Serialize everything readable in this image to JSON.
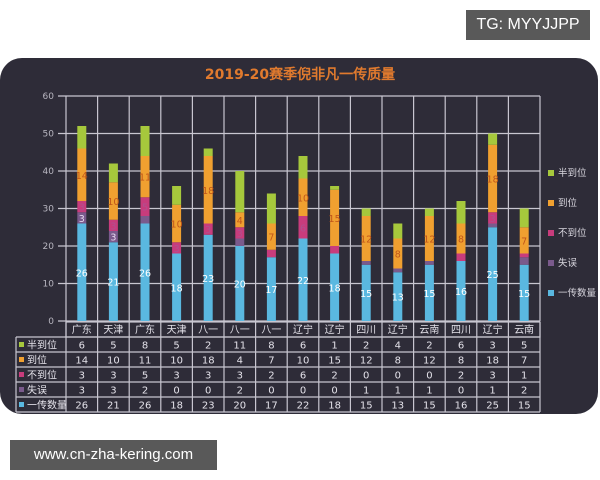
{
  "watermarks": {
    "top": "TG: MYYJJPP",
    "bottom": "www.cn-zha-kering.com"
  },
  "colors": {
    "panel_bg": "#2e2c38",
    "grid": "#c8c6d0",
    "title": "#e07a2e",
    "series": {
      "半到位": "#a6c83c",
      "到位": "#f0a030",
      "不到位": "#c83c7c",
      "失误": "#7a5a8c",
      "一传数量": "#5ab8e0"
    }
  },
  "chart_data": {
    "type": "bar",
    "stacked": true,
    "title": "2019-20赛季倪非凡一传质量",
    "xlabel": "",
    "ylabel": "",
    "ylim": [
      0,
      60
    ],
    "yticks": [
      0,
      10,
      20,
      30,
      40,
      50,
      60
    ],
    "grid": true,
    "legend_position": "right",
    "categories": [
      "广东",
      "天津",
      "广东",
      "天津",
      "八一",
      "八一",
      "八一",
      "辽宁",
      "辽宁",
      "四川",
      "辽宁",
      "云南",
      "四川",
      "辽宁",
      "云南"
    ],
    "series": [
      {
        "name": "一传数量",
        "color": "#5ab8e0",
        "values": [
          26,
          21,
          26,
          18,
          23,
          20,
          17,
          22,
          18,
          15,
          13,
          15,
          16,
          25,
          15
        ]
      },
      {
        "name": "失误",
        "color": "#7a5a8c",
        "values": [
          3,
          3,
          2,
          0,
          0,
          2,
          0,
          0,
          0,
          1,
          1,
          1,
          0,
          1,
          2
        ]
      },
      {
        "name": "不到位",
        "color": "#c83c7c",
        "values": [
          3,
          3,
          5,
          3,
          3,
          3,
          2,
          6,
          2,
          0,
          0,
          0,
          2,
          3,
          1
        ]
      },
      {
        "name": "到位",
        "color": "#f0a030",
        "values": [
          14,
          10,
          11,
          10,
          18,
          4,
          7,
          10,
          15,
          12,
          8,
          12,
          8,
          18,
          7
        ]
      },
      {
        "name": "半到位",
        "color": "#a6c83c",
        "values": [
          6,
          5,
          8,
          5,
          2,
          11,
          8,
          6,
          1,
          2,
          4,
          2,
          6,
          3,
          5
        ]
      }
    ],
    "legend_order": [
      "半到位",
      "到位",
      "不到位",
      "失误",
      "一传数量"
    ],
    "table_row_order": [
      "半到位",
      "到位",
      "不到位",
      "失误",
      "一传数量"
    ]
  }
}
